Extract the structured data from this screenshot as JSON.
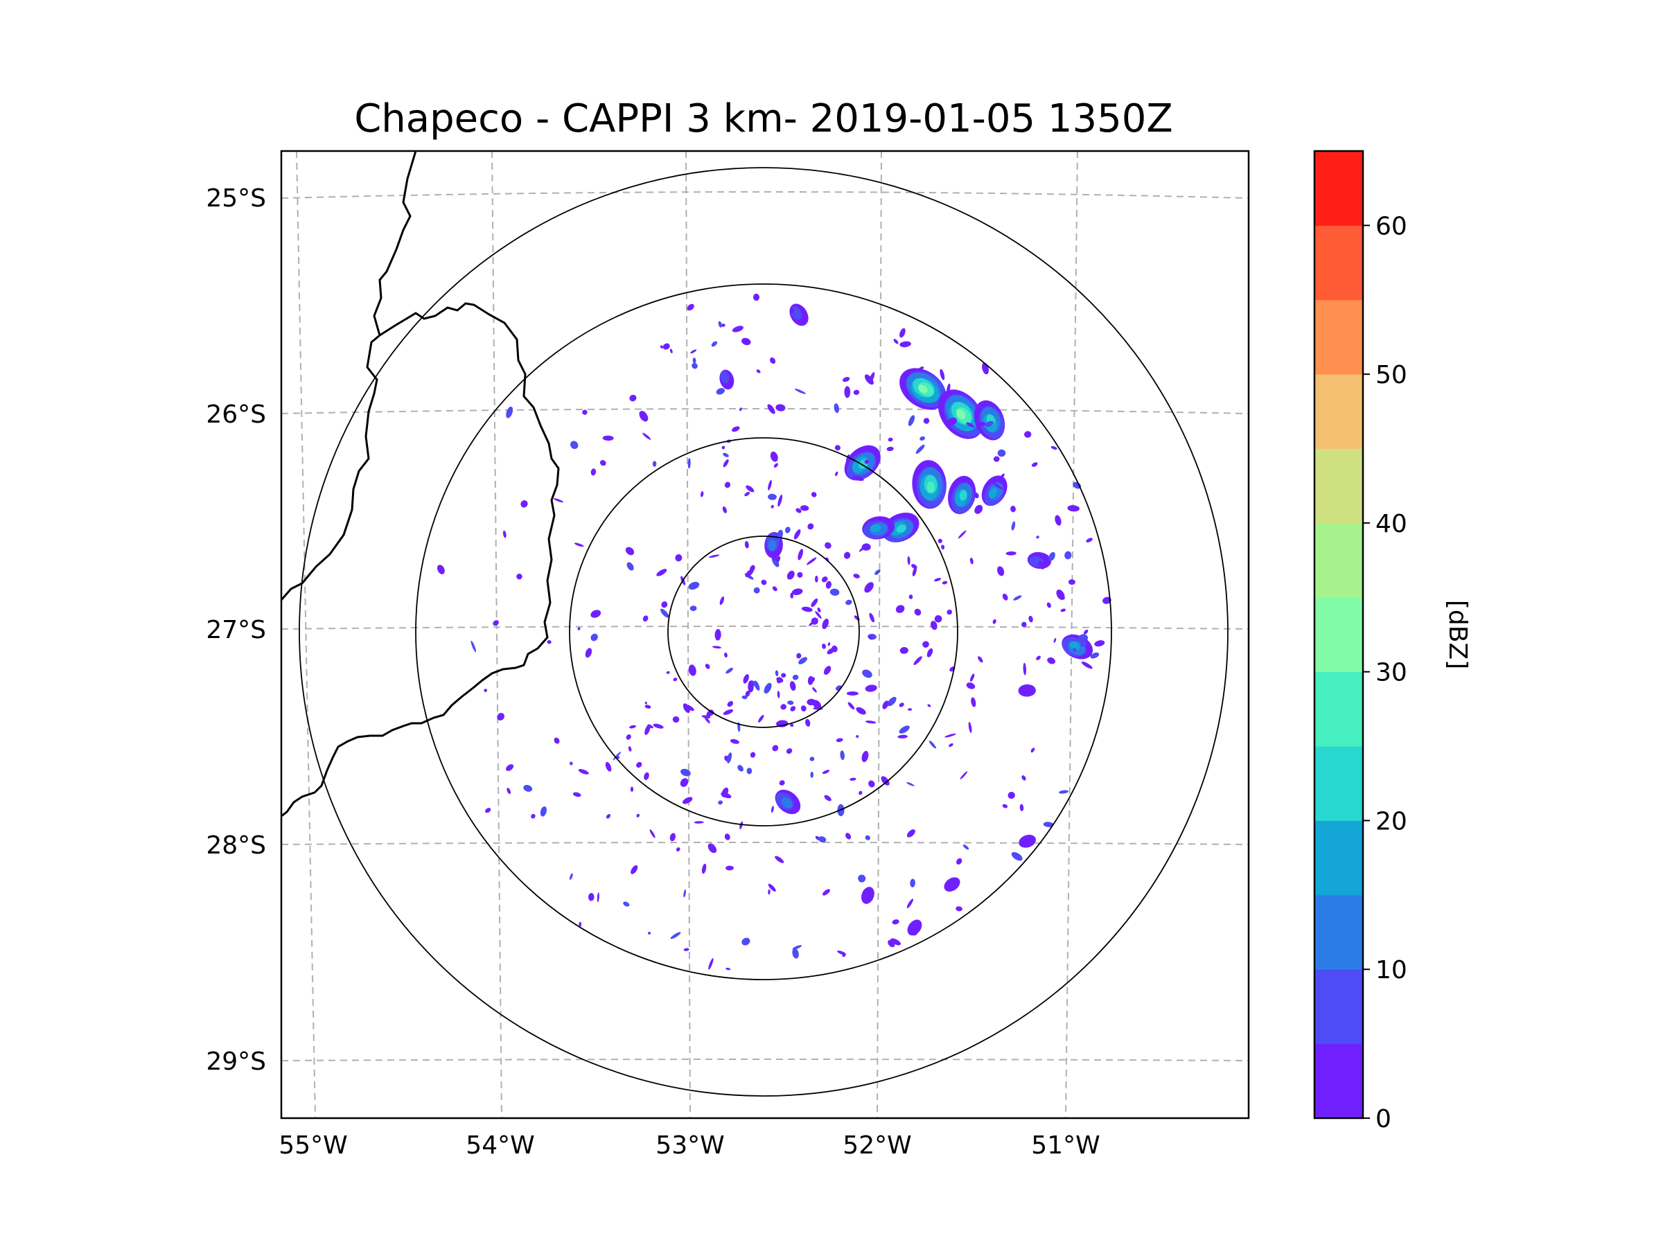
{
  "title": "Chapeco - CAPPI 3 km- 2019-01-05 1350Z",
  "lat_labels": [
    "25°S",
    "26°S",
    "27°S",
    "28°S",
    "29°S"
  ],
  "lon_labels": [
    "55°W",
    "54°W",
    "53°W",
    "52°W",
    "51°W"
  ],
  "colorbar": {
    "label": "[dBZ]",
    "tick_labels": [
      "0",
      "10",
      "20",
      "30",
      "40",
      "50",
      "60"
    ],
    "ticks": [
      0,
      10,
      20,
      30,
      40,
      50,
      60
    ],
    "min": 0,
    "max": 65,
    "bin": 5,
    "colors": [
      "#7020ff",
      "#4d4cf6",
      "#2c7ce8",
      "#14a6d7",
      "#28d7cf",
      "#47eec0",
      "#82fba8",
      "#a6f38e",
      "#cfe080",
      "#f2c070",
      "#ff9050",
      "#ff5c36",
      "#ff1f16"
    ]
  },
  "chart_data": {
    "type": "radar_reflectivity_map",
    "title": "Chapeco - CAPPI 3 km- 2019-01-05 1350Z",
    "radar_center": {
      "lon": -52.6,
      "lat": -27.03
    },
    "range_rings_degrees": [
      0.45,
      1.2,
      1.9,
      2.45
    ],
    "lon_range": [
      -55.15,
      -50.2
    ],
    "lat_range": [
      -29.3,
      -24.8
    ],
    "gridlines": {
      "lon": [
        -55,
        -54,
        -53,
        -52,
        -51
      ],
      "lat": [
        -25,
        -26,
        -27,
        -28,
        -29
      ]
    },
    "colorbar_label": "[dBZ]",
    "colorbar_range": [
      0,
      65
    ],
    "echo_cells": [
      {
        "lon": -51.75,
        "lat": -25.9,
        "dbz": 30
      },
      {
        "lon": -51.55,
        "lat": -26.02,
        "dbz": 33
      },
      {
        "lon": -51.4,
        "lat": -26.05,
        "dbz": 22
      },
      {
        "lon": -51.72,
        "lat": -26.35,
        "dbz": 28
      },
      {
        "lon": -51.55,
        "lat": -26.4,
        "dbz": 20
      },
      {
        "lon": -51.38,
        "lat": -26.38,
        "dbz": 15
      },
      {
        "lon": -52.08,
        "lat": -26.25,
        "dbz": 22
      },
      {
        "lon": -51.88,
        "lat": -26.55,
        "dbz": 20
      },
      {
        "lon": -52.0,
        "lat": -26.55,
        "dbz": 15
      },
      {
        "lon": -51.15,
        "lat": -26.7,
        "dbz": 8
      },
      {
        "lon": -50.95,
        "lat": -27.1,
        "dbz": 15
      },
      {
        "lon": -52.48,
        "lat": -27.82,
        "dbz": 12
      },
      {
        "lon": -52.42,
        "lat": -25.55,
        "dbz": 8
      },
      {
        "lon": -52.8,
        "lat": -25.85,
        "dbz": 5
      },
      {
        "lon": -52.55,
        "lat": -26.62,
        "dbz": 10
      },
      {
        "lon": -52.05,
        "lat": -28.25,
        "dbz": 3
      },
      {
        "lon": -51.8,
        "lat": -28.4,
        "dbz": 3
      },
      {
        "lon": -51.6,
        "lat": -28.2,
        "dbz": 3
      },
      {
        "lon": -51.2,
        "lat": -28.0,
        "dbz": 3
      },
      {
        "lon": -51.2,
        "lat": -27.3,
        "dbz": 3
      }
    ]
  }
}
